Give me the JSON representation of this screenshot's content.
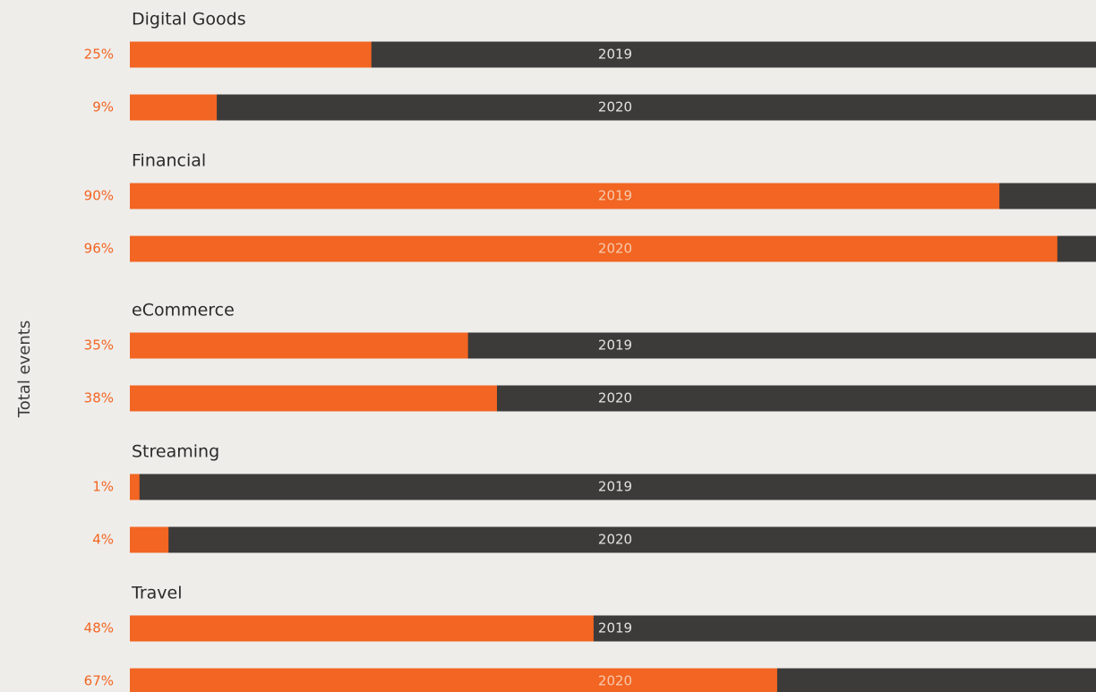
{
  "chart_data": {
    "type": "bar",
    "ylabel": "Total events",
    "xlim": [
      0,
      100
    ],
    "color": "#f26522",
    "track_color": "#3d3b3a",
    "groups": [
      {
        "name": "Digital Goods",
        "categories": [
          "2019",
          "2020"
        ],
        "values": [
          25,
          9
        ],
        "value_labels": [
          "25%",
          "9%"
        ]
      },
      {
        "name": "Financial",
        "categories": [
          "2019",
          "2020"
        ],
        "values": [
          90,
          96
        ],
        "value_labels": [
          "90%",
          "96%"
        ]
      },
      {
        "name": "eCommerce",
        "categories": [
          "2019",
          "2020"
        ],
        "values": [
          35,
          38
        ],
        "value_labels": [
          "35%",
          "38%"
        ]
      },
      {
        "name": "Streaming",
        "categories": [
          "2019",
          "2020"
        ],
        "values": [
          1,
          4
        ],
        "value_labels": [
          "1%",
          "4%"
        ]
      },
      {
        "name": "Travel",
        "categories": [
          "2019",
          "2020"
        ],
        "values": [
          48,
          67
        ],
        "value_labels": [
          "48%",
          "67%"
        ]
      }
    ]
  }
}
